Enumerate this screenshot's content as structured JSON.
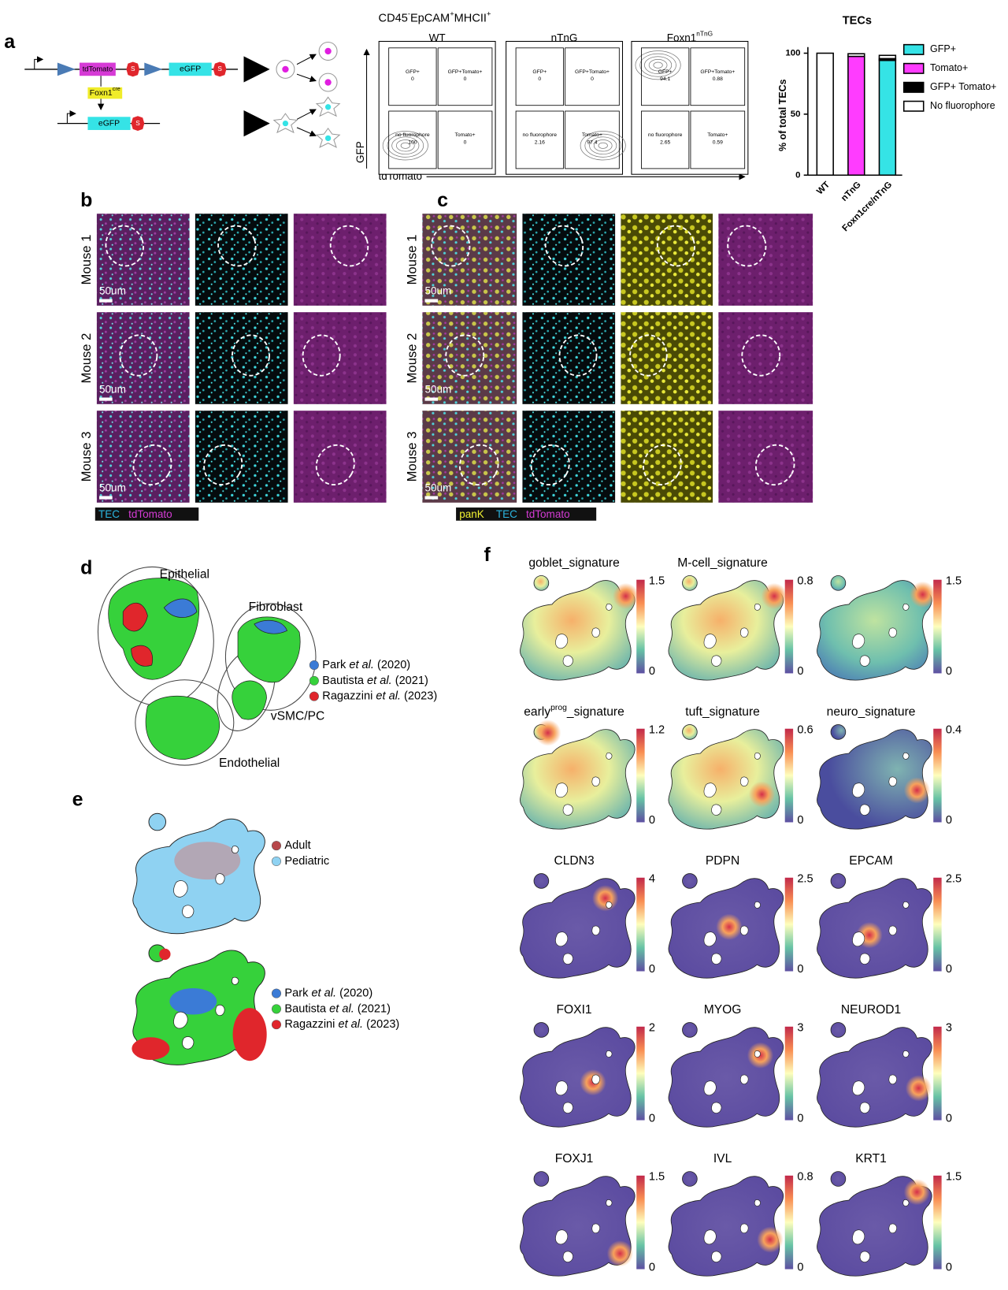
{
  "panel_labels": [
    "a",
    "b",
    "c",
    "d",
    "e",
    "f"
  ],
  "construct": {
    "tdTomato": "tdTomato",
    "eGFP": [
      "eGFP",
      "eGFP"
    ],
    "stops": [
      "S",
      "S",
      "S"
    ],
    "cre": [
      {
        "text": "Foxn1"
      },
      {
        "text": "cre",
        "sup": true
      }
    ]
  },
  "flow": {
    "title": [
      {
        "text": "CD45"
      },
      {
        "text": "-",
        "sup": true
      },
      {
        "text": "EpCAM"
      },
      {
        "text": "+",
        "sup": true
      },
      {
        "text": "MHCII"
      },
      {
        "text": "+",
        "sup": true
      }
    ],
    "x_label": "tdTomato",
    "y_label": "GFP",
    "columns": [
      {
        "name": [
          {
            "text": "WT"
          }
        ],
        "quadrants": [
          {
            "label": "GFP+",
            "value": 0
          },
          {
            "label": "GFP+Tomato+",
            "value": 0
          },
          {
            "label": "no fluorophore",
            "value": 100
          },
          {
            "label": "Tomato+",
            "value": 0
          }
        ]
      },
      {
        "name": [
          {
            "text": "nTnG"
          }
        ],
        "quadrants": [
          {
            "label": "GFP+",
            "value": 0
          },
          {
            "label": "GFP+Tomato+",
            "value": 0
          },
          {
            "label": "no fluorophore",
            "value": 2.16
          },
          {
            "label": "Tomato+",
            "value": 97.4
          }
        ]
      },
      {
        "name": [
          {
            "text": "Foxn1"
          },
          {
            "text": "nTnG",
            "sup": true
          }
        ],
        "quadrants": [
          {
            "label": "GFP+",
            "value": 94.1
          },
          {
            "label": "GFP+Tomato+",
            "value": 0.88
          },
          {
            "label": "no fluorophore",
            "value": 2.65
          },
          {
            "label": "Tomato+",
            "value": 0.59
          }
        ]
      }
    ]
  },
  "chart_data": {
    "type": "bar",
    "stacked": true,
    "title": "TECs",
    "y_label": "% of total TECs",
    "categories": [
      "WT",
      "nTnG",
      "Foxn1cre/nTnG"
    ],
    "series": [
      {
        "name": "GFP+",
        "color": "#35e3e6",
        "values": [
          0,
          0,
          94.1
        ]
      },
      {
        "name": "Tomato+",
        "color": "#ff3cff",
        "values": [
          0,
          97.4,
          0.59
        ]
      },
      {
        "name": "GFP+ Tomato+",
        "color": "#000000",
        "values": [
          0,
          0,
          0.88
        ]
      },
      {
        "name": "No fluorophore",
        "color": "#ffffff",
        "values": [
          100,
          2.16,
          2.65
        ]
      }
    ],
    "ylim": [
      0,
      105
    ],
    "yticks": [
      0,
      50,
      100
    ]
  },
  "panel_b": {
    "rows": [
      "Mouse 1",
      "Mouse 2",
      "Mouse 3"
    ],
    "scale": [
      "50um",
      "50um",
      "50um"
    ],
    "legend": [
      {
        "name": "TEC",
        "color": "#2bb5e0"
      },
      {
        "name": "tdTomato",
        "color": "#d43bd4"
      }
    ]
  },
  "panel_c": {
    "rows": [
      "Mouse 1",
      "Mouse 2",
      "Mouse 3"
    ],
    "scale": [
      "50um",
      "50um",
      "50um"
    ],
    "legend": [
      {
        "name": "panK",
        "color": "#f2f232"
      },
      {
        "name": "TEC",
        "color": "#2bb5e0"
      },
      {
        "name": "tdTomato",
        "color": "#d43bd4"
      }
    ]
  },
  "panel_d": {
    "clusters": [
      "Epithelial",
      "Fibroblast",
      "vSMC/PC",
      "Endothelial"
    ],
    "legend": [
      {
        "author": "Park",
        "etal": "et al.",
        "year": "(2020)",
        "color": "#3b7bd6"
      },
      {
        "author": "Bautista",
        "etal": "et al.",
        "year": "(2021)",
        "color": "#36d13b"
      },
      {
        "author": "Ragazzini",
        "etal": "et al.",
        "year": "(2023)",
        "color": "#e0262c"
      }
    ]
  },
  "panel_e": {
    "legend_age": [
      {
        "name": "Adult",
        "color": "#b7474a"
      },
      {
        "name": "Pediatric",
        "color": "#8fd2f2"
      }
    ],
    "legend_study": [
      {
        "author": "Park",
        "etal": "et al.",
        "year": "(2020)",
        "color": "#3b7bd6"
      },
      {
        "author": "Bautista",
        "etal": "et al.",
        "year": "(2021)",
        "color": "#36d13b"
      },
      {
        "author": "Ragazzini",
        "etal": "et al.",
        "year": "(2023)",
        "color": "#e0262c"
      }
    ]
  },
  "panel_f": {
    "umaps": [
      {
        "title": [
          {
            "text": "goblet_signature"
          }
        ],
        "colorbar": [
          0,
          1.5
        ]
      },
      {
        "title": [
          {
            "text": "M-cell_signature"
          }
        ],
        "colorbar": [
          0,
          0.8
        ]
      },
      {
        "colorbar": [
          0,
          1.5
        ]
      },
      {
        "title": [
          {
            "text": "early"
          },
          {
            "text": "prog",
            "sup": true
          },
          {
            "text": "_signature"
          }
        ],
        "colorbar": [
          0,
          1.2
        ]
      },
      {
        "title": [
          {
            "text": "tuft_signature"
          }
        ],
        "colorbar": [
          0,
          0.6
        ]
      },
      {
        "title": [
          {
            "text": "neuro_signature"
          }
        ],
        "colorbar": [
          0,
          0.4
        ]
      },
      {
        "title": [
          {
            "text": "CLDN3"
          }
        ],
        "colorbar": [
          0,
          4
        ]
      },
      {
        "title": [
          {
            "text": "PDPN"
          }
        ],
        "colorbar": [
          0,
          2.5
        ]
      },
      {
        "title": [
          {
            "text": "EPCAM"
          }
        ],
        "colorbar": [
          0,
          2.5
        ]
      },
      {
        "title": [
          {
            "text": "FOXI1"
          }
        ],
        "colorbar": [
          0,
          2
        ]
      },
      {
        "title": [
          {
            "text": "MYOG"
          }
        ],
        "colorbar": [
          0,
          3
        ]
      },
      {
        "title": [
          {
            "text": "NEUROD1"
          }
        ],
        "colorbar": [
          0,
          3
        ]
      },
      {
        "title": [
          {
            "text": "FOXJ1"
          }
        ],
        "colorbar": [
          0,
          1.5
        ]
      },
      {
        "title": [
          {
            "text": "IVL"
          }
        ],
        "colorbar": [
          0,
          0.8
        ]
      },
      {
        "title": [
          {
            "text": "KRT1"
          }
        ],
        "colorbar": [
          0,
          1.5
        ]
      }
    ]
  }
}
